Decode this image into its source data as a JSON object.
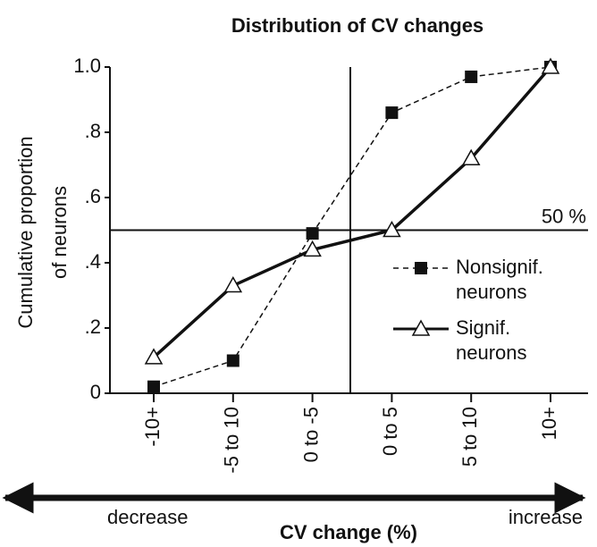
{
  "chart_data": {
    "type": "line",
    "title": "Distribution of CV changes",
    "x_label": "CV change (%)",
    "y_label": [
      "Cumulative proportion",
      "of neurons"
    ],
    "x_direction_labels": [
      "decrease",
      "increase"
    ],
    "categories": [
      "-10+",
      "-5 to 10",
      "0 to -5",
      "0 to 5",
      "5 to 10",
      "10+"
    ],
    "series": [
      {
        "name": "Nonsignif. neurons",
        "color": "#111111",
        "dash": true,
        "marker": "square",
        "values": [
          0.02,
          0.1,
          0.49,
          0.86,
          0.97,
          1.0
        ]
      },
      {
        "name": "Signif. neurons",
        "color": "#111111",
        "dash": false,
        "marker": "triangle",
        "values": [
          0.11,
          0.33,
          0.44,
          0.5,
          0.72,
          1.0
        ]
      }
    ],
    "ylim": [
      0,
      1
    ],
    "yticks": [
      0,
      {
        "value": 0.2,
        "label": ".2"
      },
      {
        "value": 0.4,
        "label": ".4"
      },
      {
        "value": 0.6,
        "label": ".6"
      },
      {
        "value": 0.8,
        "label": ".8"
      },
      {
        "value": 1,
        "label": "1.0"
      }
    ],
    "reference_line": {
      "value": 0.5,
      "label": "50 %"
    }
  }
}
